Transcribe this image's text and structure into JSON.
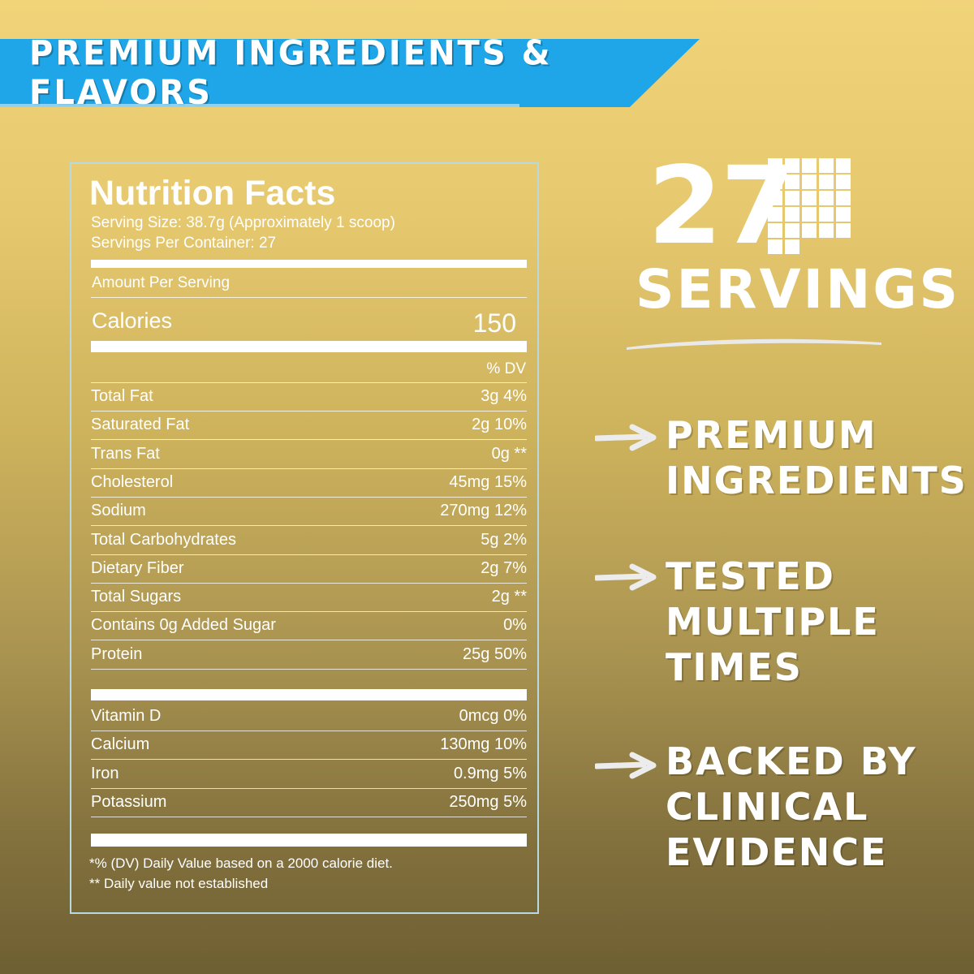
{
  "banner": {
    "title": "PREMIUM INGREDIENTS & FLAVORS"
  },
  "nutrition": {
    "title": "Nutrition Facts",
    "serving_size": "Serving Size: 38.7g (Approximately 1 scoop)",
    "servings_per_container": "Servings Per Container: 27",
    "amount_per_serving": "Amount Per Serving",
    "calories_label": "Calories",
    "calories_value": "150",
    "dv_header": "% DV",
    "rows": [
      {
        "label": "Total Fat",
        "value": "3g 4%"
      },
      {
        "label": "Saturated Fat",
        "value": "2g 10%"
      },
      {
        "label": "Trans Fat",
        "value": "0g **"
      },
      {
        "label": "Cholesterol",
        "value": "45mg 15%"
      },
      {
        "label": "Sodium",
        "value": "270mg 12%"
      },
      {
        "label": "Total Carbohydrates",
        "value": "5g 2%"
      },
      {
        "label": "Dietary Fiber",
        "value": "2g 7%"
      },
      {
        "label": "Total Sugars",
        "value": "2g **"
      },
      {
        "label": "Contains 0g Added Sugar",
        "value": "0%"
      },
      {
        "label": "Protein",
        "value": "25g 50%"
      }
    ],
    "vitamins": [
      {
        "label": "Vitamin D",
        "value": "0mcg 0%"
      },
      {
        "label": "Calcium",
        "value": "130mg 10%"
      },
      {
        "label": "Iron",
        "value": "0.9mg 5%"
      },
      {
        "label": "Potassium",
        "value": "250mg 5%"
      }
    ],
    "footnote_1": "*% (DV) Daily Value based on a 2000 calorie diet.",
    "footnote_2": "** Daily value not established"
  },
  "servings_badge": {
    "number": "27",
    "label": "SERVINGS",
    "icon": "servings-grid-icon"
  },
  "claims": [
    {
      "lines": [
        "PREMIUM",
        "INGREDIENTS"
      ]
    },
    {
      "lines": [
        "TESTED",
        "MULTIPLE",
        "TIMES"
      ]
    },
    {
      "lines": [
        "BACKED BY",
        "CLINICAL",
        "EVIDENCE"
      ]
    }
  ],
  "colors": {
    "banner": "#1ea6e8",
    "panel_border": "#b8d8e2",
    "text": "#ffffff"
  }
}
